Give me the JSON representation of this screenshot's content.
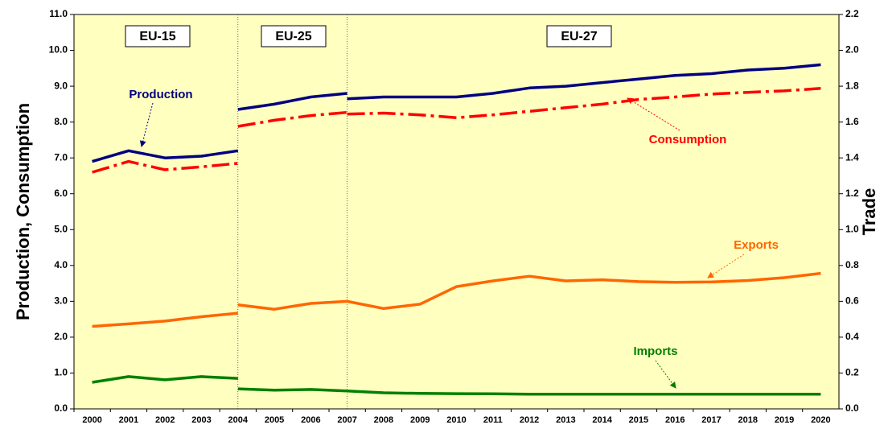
{
  "chart_data": {
    "type": "line",
    "categories": [
      "2000",
      "2001",
      "2002",
      "2003",
      "2004",
      "2005",
      "2006",
      "2007",
      "2008",
      "2009",
      "2010",
      "2011",
      "2012",
      "2013",
      "2014",
      "2015",
      "2016",
      "2017",
      "2018",
      "2019",
      "2020"
    ],
    "ylabel": "Production, Consumption",
    "y2label": "Trade",
    "ylim": [
      0,
      11
    ],
    "y2lim": [
      0,
      2.2
    ],
    "yticks": [
      {
        "value": 0,
        "label": "0.0"
      },
      {
        "value": 1,
        "label": "1.0"
      },
      {
        "value": 2,
        "label": "2.0"
      },
      {
        "value": 3,
        "label": "3.0"
      },
      {
        "value": 4,
        "label": "4.0"
      },
      {
        "value": 5,
        "label": "5.0"
      },
      {
        "value": 6,
        "label": "6.0"
      },
      {
        "value": 7,
        "label": "7.0"
      },
      {
        "value": 8,
        "label": "8.0"
      },
      {
        "value": 9,
        "label": "9.0"
      },
      {
        "value": 10,
        "label": "10.0"
      },
      {
        "value": 11,
        "label": "11.0"
      }
    ],
    "y2ticks": [
      {
        "value": 0,
        "label": "0.0"
      },
      0.2,
      0.4,
      0.6,
      0.8,
      {
        "value": 1,
        "label": "1.0"
      },
      1.2,
      1.4,
      1.6,
      1.8,
      {
        "value": 2,
        "label": "2.0"
      },
      2.2
    ],
    "annotations": [
      "EU-15",
      "EU-25",
      "EU-27"
    ],
    "series": [
      {
        "name": "Production",
        "color": "#000080",
        "axis": "y",
        "dash": false,
        "segments": [
          {
            "values": [
              6.9,
              7.2,
              7.0,
              7.05,
              7.2,
              null,
              null,
              null,
              null,
              null,
              null,
              null,
              null,
              null,
              null,
              null,
              null,
              null,
              null,
              null,
              null
            ]
          },
          {
            "values": [
              null,
              null,
              null,
              null,
              8.35,
              8.5,
              8.7,
              8.8,
              null,
              null,
              null,
              null,
              null,
              null,
              null,
              null,
              null,
              null,
              null,
              null,
              null
            ]
          },
          {
            "values": [
              null,
              null,
              null,
              null,
              null,
              null,
              null,
              8.65,
              8.7,
              8.7,
              8.7,
              8.8,
              8.95,
              9.0,
              9.1,
              9.2,
              9.3,
              9.35,
              9.45,
              9.5,
              9.6
            ]
          }
        ]
      },
      {
        "name": "Consumption",
        "color": "#ff0000",
        "axis": "y",
        "dash": true,
        "segments": [
          {
            "values": [
              6.6,
              6.9,
              6.67,
              6.75,
              6.85,
              null,
              null,
              null,
              null,
              null,
              null,
              null,
              null,
              null,
              null,
              null,
              null,
              null,
              null,
              null,
              null
            ]
          },
          {
            "values": [
              null,
              null,
              null,
              null,
              7.88,
              8.05,
              8.18,
              8.27,
              null,
              null,
              null,
              null,
              null,
              null,
              null,
              null,
              null,
              null,
              null,
              null,
              null
            ]
          },
          {
            "values": [
              null,
              null,
              null,
              null,
              null,
              null,
              null,
              8.22,
              8.25,
              8.2,
              8.12,
              8.2,
              8.3,
              8.4,
              8.5,
              8.63,
              8.7,
              8.78,
              8.83,
              8.87,
              8.94
            ]
          }
        ]
      },
      {
        "name": "Exports",
        "color": "#ff6600",
        "axis": "y2",
        "dash": false,
        "segments": [
          {
            "values": [
              0.46,
              0.474,
              0.49,
              0.514,
              0.534,
              null,
              null,
              null,
              null,
              null,
              null,
              null,
              null,
              null,
              null,
              null,
              null,
              null,
              null,
              null,
              null
            ]
          },
          {
            "values": [
              null,
              null,
              null,
              null,
              0.58,
              0.556,
              0.588,
              0.6,
              null,
              null,
              null,
              null,
              null,
              null,
              null,
              null,
              null,
              null,
              null,
              null,
              null
            ]
          },
          {
            "values": [
              null,
              null,
              null,
              null,
              null,
              null,
              null,
              0.6,
              0.56,
              0.584,
              0.682,
              0.714,
              0.74,
              0.714,
              0.72,
              0.71,
              0.706,
              0.708,
              0.716,
              0.732,
              0.756
            ]
          }
        ]
      },
      {
        "name": "Imports",
        "color": "#008000",
        "axis": "y2",
        "dash": false,
        "segments": [
          {
            "values": [
              0.148,
              0.18,
              0.162,
              0.18,
              0.17,
              null,
              null,
              null,
              null,
              null,
              null,
              null,
              null,
              null,
              null,
              null,
              null,
              null,
              null,
              null,
              null
            ]
          },
          {
            "values": [
              null,
              null,
              null,
              null,
              0.112,
              0.104,
              0.108,
              0.1,
              null,
              null,
              null,
              null,
              null,
              null,
              null,
              null,
              null,
              null,
              null,
              null,
              null
            ]
          },
          {
            "values": [
              null,
              null,
              null,
              null,
              null,
              null,
              null,
              0.1,
              0.09,
              0.086,
              0.085,
              0.084,
              0.082,
              0.082,
              0.082,
              0.082,
              0.082,
              0.082,
              0.082,
              0.082,
              0.082
            ]
          }
        ]
      }
    ]
  }
}
